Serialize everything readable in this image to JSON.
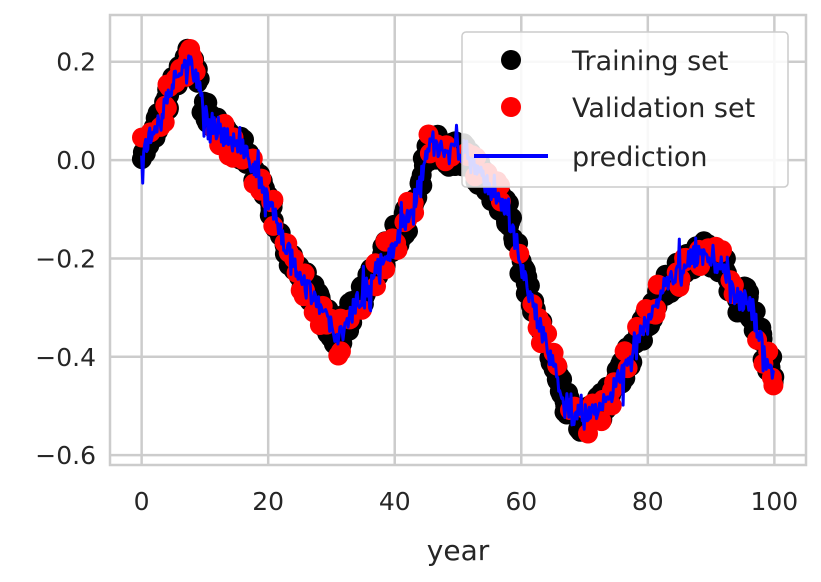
{
  "chart_data": {
    "type": "scatter",
    "title": "",
    "xlabel": "year",
    "ylabel": "",
    "xlim": [
      -5,
      105
    ],
    "ylim": [
      -0.62,
      0.295
    ],
    "xticks": [
      0,
      20,
      40,
      60,
      80,
      100
    ],
    "yticks": [
      0.2,
      0.0,
      -0.2,
      -0.4,
      -0.6
    ],
    "ytick_labels": [
      "0.2",
      "0.0",
      "−0.2",
      "−0.4",
      "−0.6"
    ],
    "grid": true,
    "legend_position": "top-right",
    "trend": {
      "x": [
        0,
        1,
        2,
        3,
        4,
        5,
        6,
        7,
        8,
        9,
        10,
        12,
        14,
        16,
        18,
        20,
        22,
        24,
        26,
        28,
        30,
        31,
        32,
        34,
        36,
        38,
        40,
        42,
        44,
        45,
        46,
        48,
        50,
        52,
        54,
        56,
        58,
        60,
        62,
        64,
        66,
        68,
        70,
        72,
        74,
        76,
        78,
        80,
        82,
        84,
        86,
        88,
        90,
        92,
        94,
        96,
        98,
        99,
        100
      ],
      "y": [
        0.02,
        0.04,
        0.07,
        0.09,
        0.12,
        0.16,
        0.19,
        0.2,
        0.19,
        0.15,
        0.1,
        0.06,
        0.04,
        0.02,
        -0.02,
        -0.08,
        -0.15,
        -0.21,
        -0.25,
        -0.3,
        -0.34,
        -0.37,
        -0.34,
        -0.29,
        -0.25,
        -0.2,
        -0.16,
        -0.12,
        -0.05,
        0.02,
        0.03,
        0.01,
        0.02,
        -0.01,
        -0.04,
        -0.07,
        -0.11,
        -0.22,
        -0.3,
        -0.38,
        -0.46,
        -0.52,
        -0.53,
        -0.51,
        -0.48,
        -0.43,
        -0.37,
        -0.32,
        -0.27,
        -0.24,
        -0.21,
        -0.19,
        -0.2,
        -0.22,
        -0.28,
        -0.29,
        -0.37,
        -0.42,
        -0.43
      ]
    },
    "series": [
      {
        "name": "Training set",
        "kind": "points",
        "color": "#000000",
        "count": 560,
        "noise": 0.03,
        "seed": 11
      },
      {
        "name": "Validation set",
        "kind": "points",
        "color": "#ff0000",
        "count": 140,
        "noise": 0.035,
        "seed": 23
      },
      {
        "name": "prediction",
        "kind": "line",
        "color": "#0000ff",
        "count": 620,
        "noise": 0.022,
        "seed": 37
      }
    ]
  }
}
